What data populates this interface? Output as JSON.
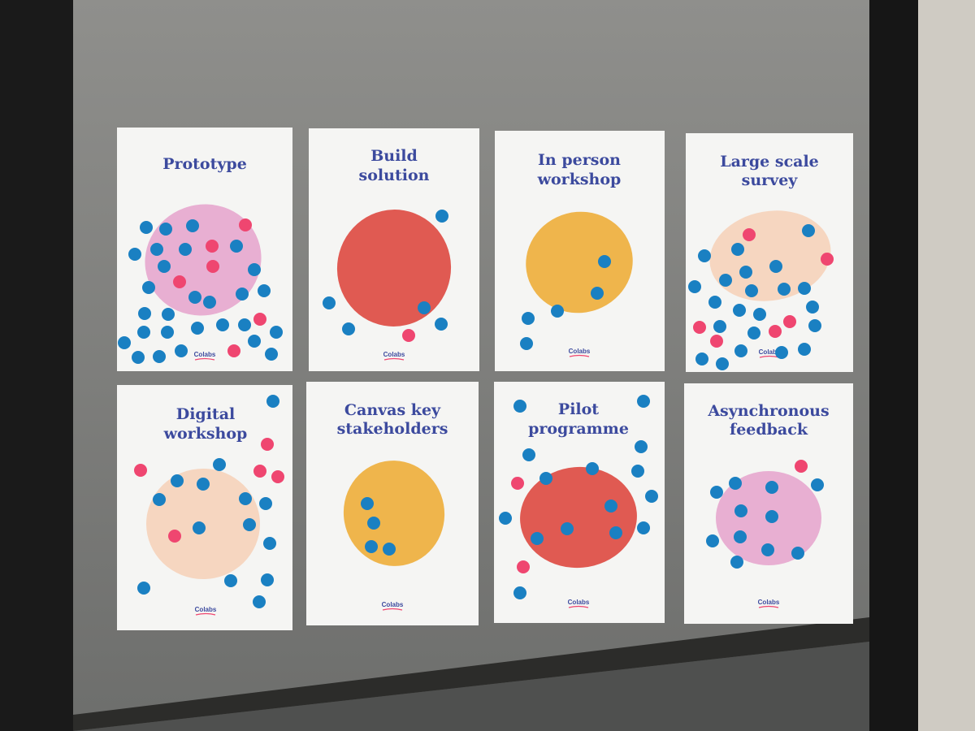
{
  "posters": [
    {
      "title_lines": [
        "Prototype"
      ],
      "logo": "Colabs"
    },
    {
      "title_lines": [
        "Build",
        "solution"
      ],
      "logo": "Colabs"
    },
    {
      "title_lines": [
        "In person",
        "workshop"
      ],
      "logo": "Colabs"
    },
    {
      "title_lines": [
        "Large scale",
        "survey"
      ],
      "logo": "Colabs"
    },
    {
      "title_lines": [
        "Digital",
        "workshop"
      ],
      "logo": "Colabs"
    },
    {
      "title_lines": [
        "Canvas key",
        "stakeholders"
      ],
      "logo": "Colabs"
    },
    {
      "title_lines": [
        "Pilot",
        "programme"
      ],
      "logo": "Colabs"
    },
    {
      "title_lines": [
        "Asynchronous",
        "feedback"
      ],
      "logo": "Colabs"
    }
  ]
}
